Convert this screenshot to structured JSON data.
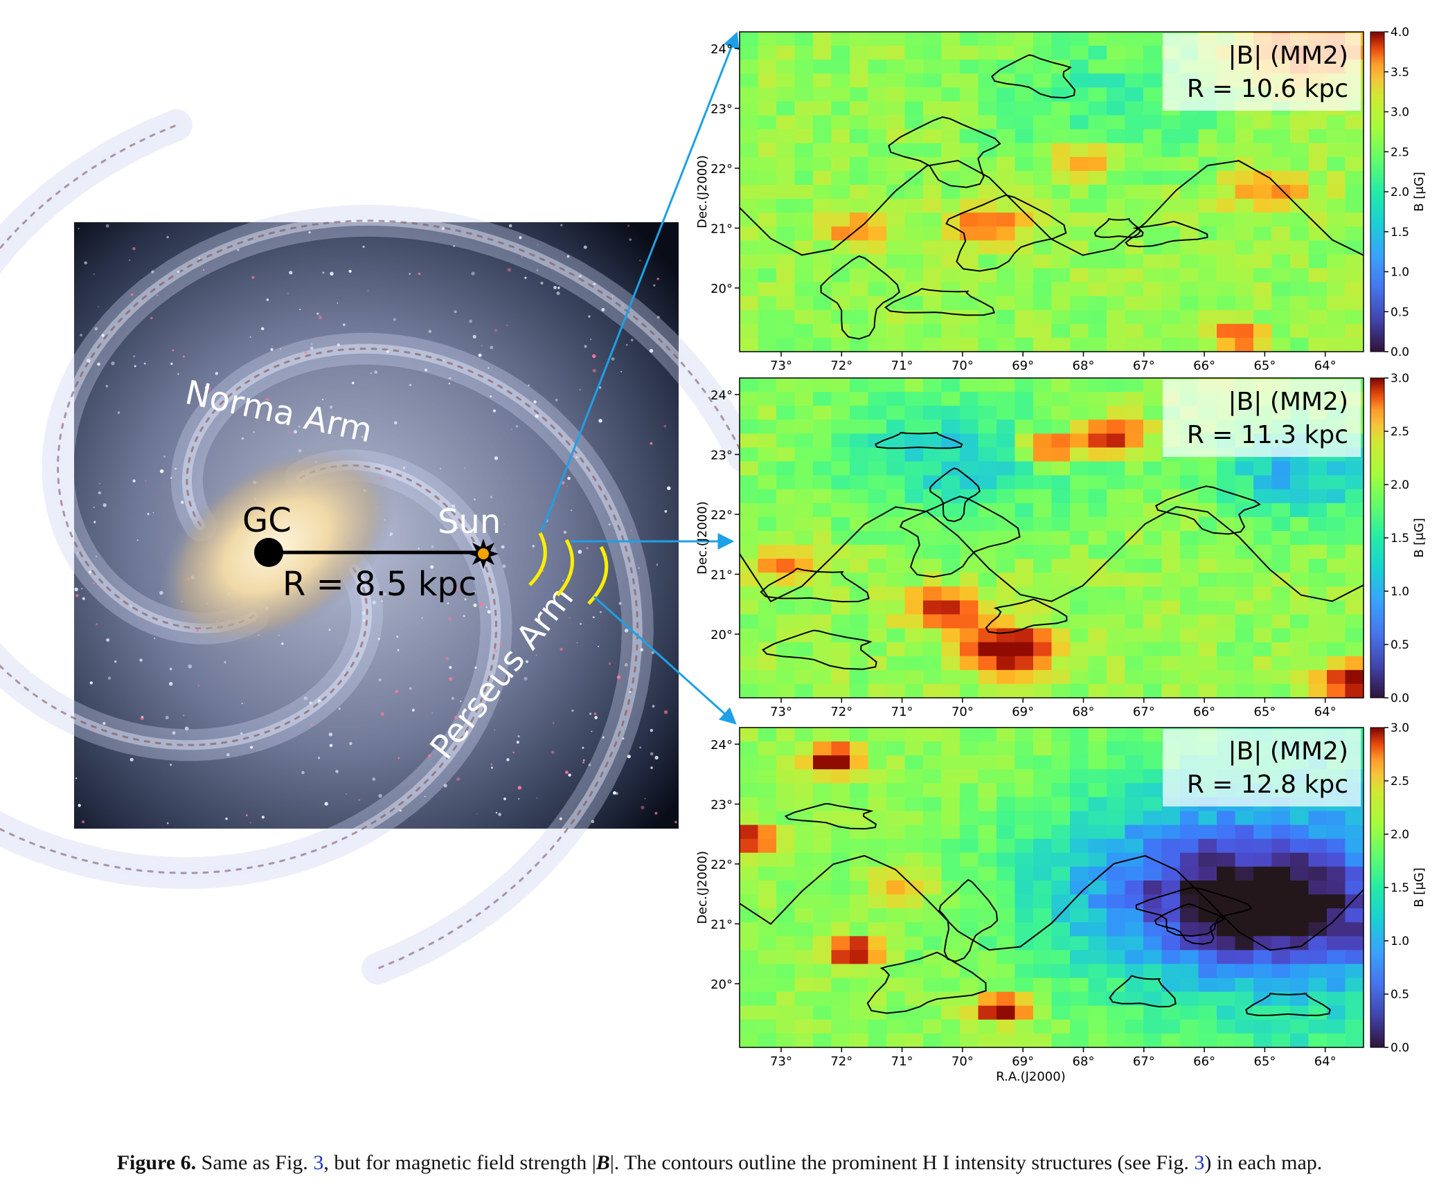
{
  "galaxy": {
    "labels": {
      "norma": "Norma Arm",
      "perseus": "Perseus Arm",
      "gc": "GC",
      "sun": "Sun",
      "distance": "R = 8.5 kpc"
    },
    "colors": {
      "bar": "#000000",
      "sun": "#f5a300",
      "arcs": "#ffee00",
      "arrows": "#1ea0e6"
    }
  },
  "maps": {
    "x_ticks": [
      "73°",
      "72°",
      "71°",
      "70°",
      "69°",
      "68°",
      "67°",
      "66°",
      "65°",
      "64°"
    ],
    "y_ticks": [
      "24°",
      "23°",
      "22°",
      "21°",
      "20°"
    ],
    "ylabel": "Dec.(J2000)",
    "xlabel": "R.A.(J2000)",
    "cbar_label": "B [μG]",
    "panels": [
      {
        "title": "|B| (MM2)",
        "radius": "R = 10.6 kpc",
        "cbar_ticks": [
          "4.0",
          "3.5",
          "3.0",
          "2.5",
          "2.0",
          "1.5",
          "1.0",
          "0.5",
          "0.0"
        ]
      },
      {
        "title": "|B| (MM2)",
        "radius": "R = 11.3 kpc",
        "cbar_ticks": [
          "3.0",
          "2.5",
          "2.0",
          "1.5",
          "1.0",
          "0.5",
          "0.0"
        ]
      },
      {
        "title": "|B| (MM2)",
        "radius": "R = 12.8 kpc",
        "cbar_ticks": [
          "3.0",
          "2.5",
          "2.0",
          "1.5",
          "1.0",
          "0.5",
          "0.0"
        ]
      }
    ]
  },
  "caption": {
    "label": "Figure 6.",
    "part1": " Same as Fig. ",
    "ref1": "3",
    "part2": ", but for magnetic field strength |",
    "bsym": "B",
    "part3": "|. The contours outline the prominent H I intensity structures (see Fig. ",
    "ref2": "3",
    "part4": ") in each map."
  }
}
